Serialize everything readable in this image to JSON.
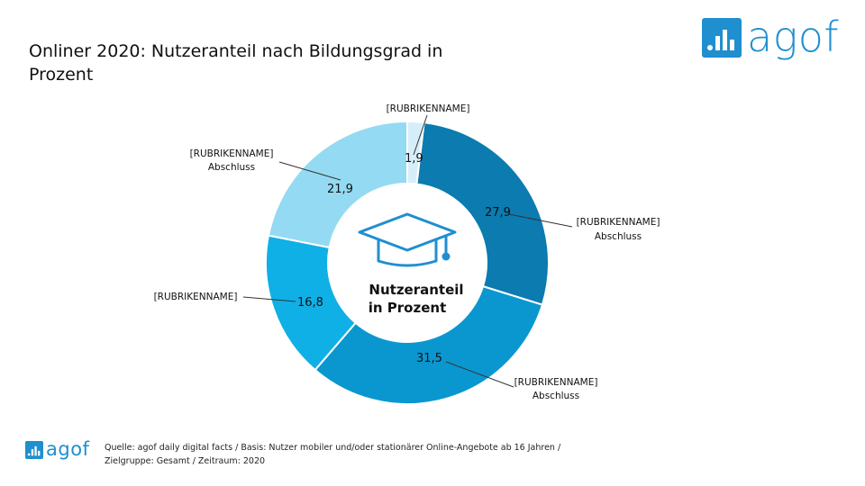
{
  "header": {
    "title": "Onliner 2020: Nutzeranteil nach Bildungsgrad in Prozent",
    "logo_text": "agof"
  },
  "footer": {
    "logo_text": "agof",
    "source_line1": "Quelle: agof daily digital facts / Basis: Nutzer mobiler und/oder stationärer Online-Angebote ab 16 Jahren /",
    "source_line2": "Zielgruppe: Gesamt / Zeitraum: 2020"
  },
  "center_label": [
    "Nutzeranteil",
    "in Prozent"
  ],
  "center_icon": "graduation-cap-icon",
  "colors": {
    "brand": "#1f8fcf",
    "slices": [
      "#d6eef9",
      "#0b7bb0",
      "#0a97d0",
      "#0fb0e6",
      "#94daf2"
    ]
  },
  "chart_data": {
    "type": "pie",
    "donut": true,
    "title": "Onliner 2020: Nutzeranteil nach Bildungsgrad in Prozent",
    "slices": [
      {
        "category": "[RUBRIKENNAME]",
        "value": 1.9,
        "value_label": "1,9"
      },
      {
        "category": "[RUBRIKENNAME] Abschluss",
        "value": 27.9,
        "value_label": "27,9"
      },
      {
        "category": "[RUBRIKENNAME] Abschluss",
        "value": 31.5,
        "value_label": "31,5"
      },
      {
        "category": "[RUBRIKENNAME]",
        "value": 16.8,
        "value_label": "16,8"
      },
      {
        "category": "[RUBRIKENNAME] Abschluss",
        "value": 21.9,
        "value_label": "21,9"
      }
    ],
    "category_labels": [
      [
        "[RUBRIKENNAME]"
      ],
      [
        "[RUBRIKENNAME]",
        "Abschluss"
      ],
      [
        "[RUBRIKENNAME]",
        "Abschluss"
      ],
      [
        "[RUBRIKENNAME]"
      ],
      [
        "[RUBRIKENNAME]",
        "Abschluss"
      ]
    ]
  }
}
